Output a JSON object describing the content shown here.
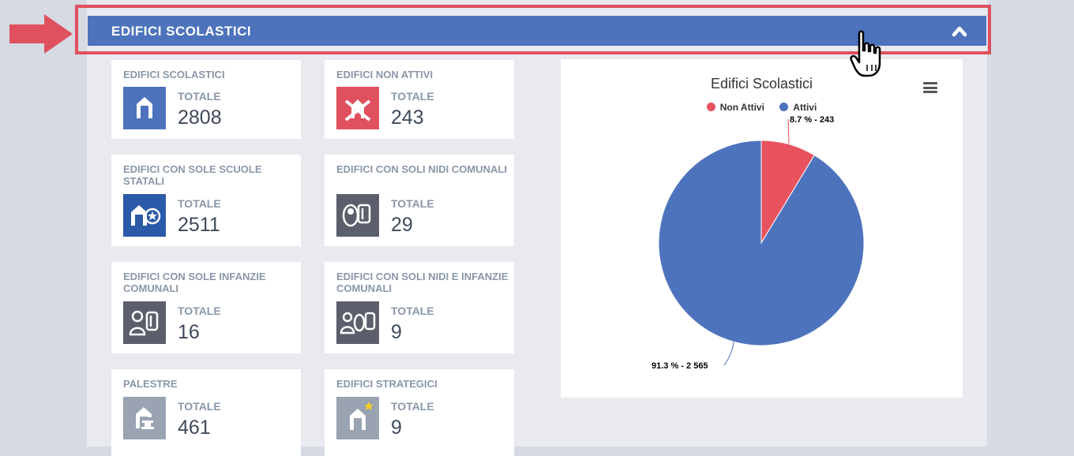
{
  "section": {
    "title": "EDIFICI SCOLASTICI"
  },
  "cards": [
    {
      "title": "EDIFICI SCOLASTICI",
      "label": "TOTALE",
      "value": "2808",
      "icon": "school-building-icon",
      "color": "#4d73bd"
    },
    {
      "title": "EDIFICI NON ATTIVI",
      "label": "TOTALE",
      "value": "243",
      "icon": "inactive-building-icon",
      "color": "#e0505e"
    },
    {
      "title": "EDIFICI CON SOLE SCUOLE STATALI",
      "label": "TOTALE",
      "value": "2511",
      "icon": "state-school-icon",
      "color": "#2b5aa8"
    },
    {
      "title": "EDIFICI CON SOLI NIDI COMUNALI",
      "label": "TOTALE",
      "value": "29",
      "icon": "nursery-icon",
      "color": "#5a5f6b"
    },
    {
      "title": "EDIFICI CON SOLE INFANZIE COMUNALI",
      "label": "TOTALE",
      "value": "16",
      "icon": "kindergarten-icon",
      "color": "#5a5f6b"
    },
    {
      "title": "EDIFICI CON SOLI NIDI E INFANZIE COMUNALI",
      "label": "TOTALE",
      "value": "9",
      "icon": "nursery-kindergarten-icon",
      "color": "#5a5f6b"
    },
    {
      "title": "PALESTRE",
      "label": "TOTALE",
      "value": "461",
      "icon": "gym-icon",
      "color": "#9aa3b2"
    },
    {
      "title": "EDIFICI STRATEGICI",
      "label": "TOTALE",
      "value": "9",
      "icon": "strategic-building-icon",
      "color": "#9aa3b2"
    }
  ],
  "chart_data": {
    "type": "pie",
    "title": "Edifici Scolastici",
    "slices": [
      {
        "name": "Non Attivi",
        "value": 243,
        "percent": 8.7,
        "label": "8.7 % - 243",
        "color": "#e8525e"
      },
      {
        "name": "Attivi",
        "value": 2565,
        "percent": 91.3,
        "label": "91.3 % - 2 565",
        "color": "#4d73bd"
      }
    ],
    "legend_position": "top"
  },
  "colors": {
    "header": "#4d73bd",
    "highlight": "#e0505e"
  }
}
